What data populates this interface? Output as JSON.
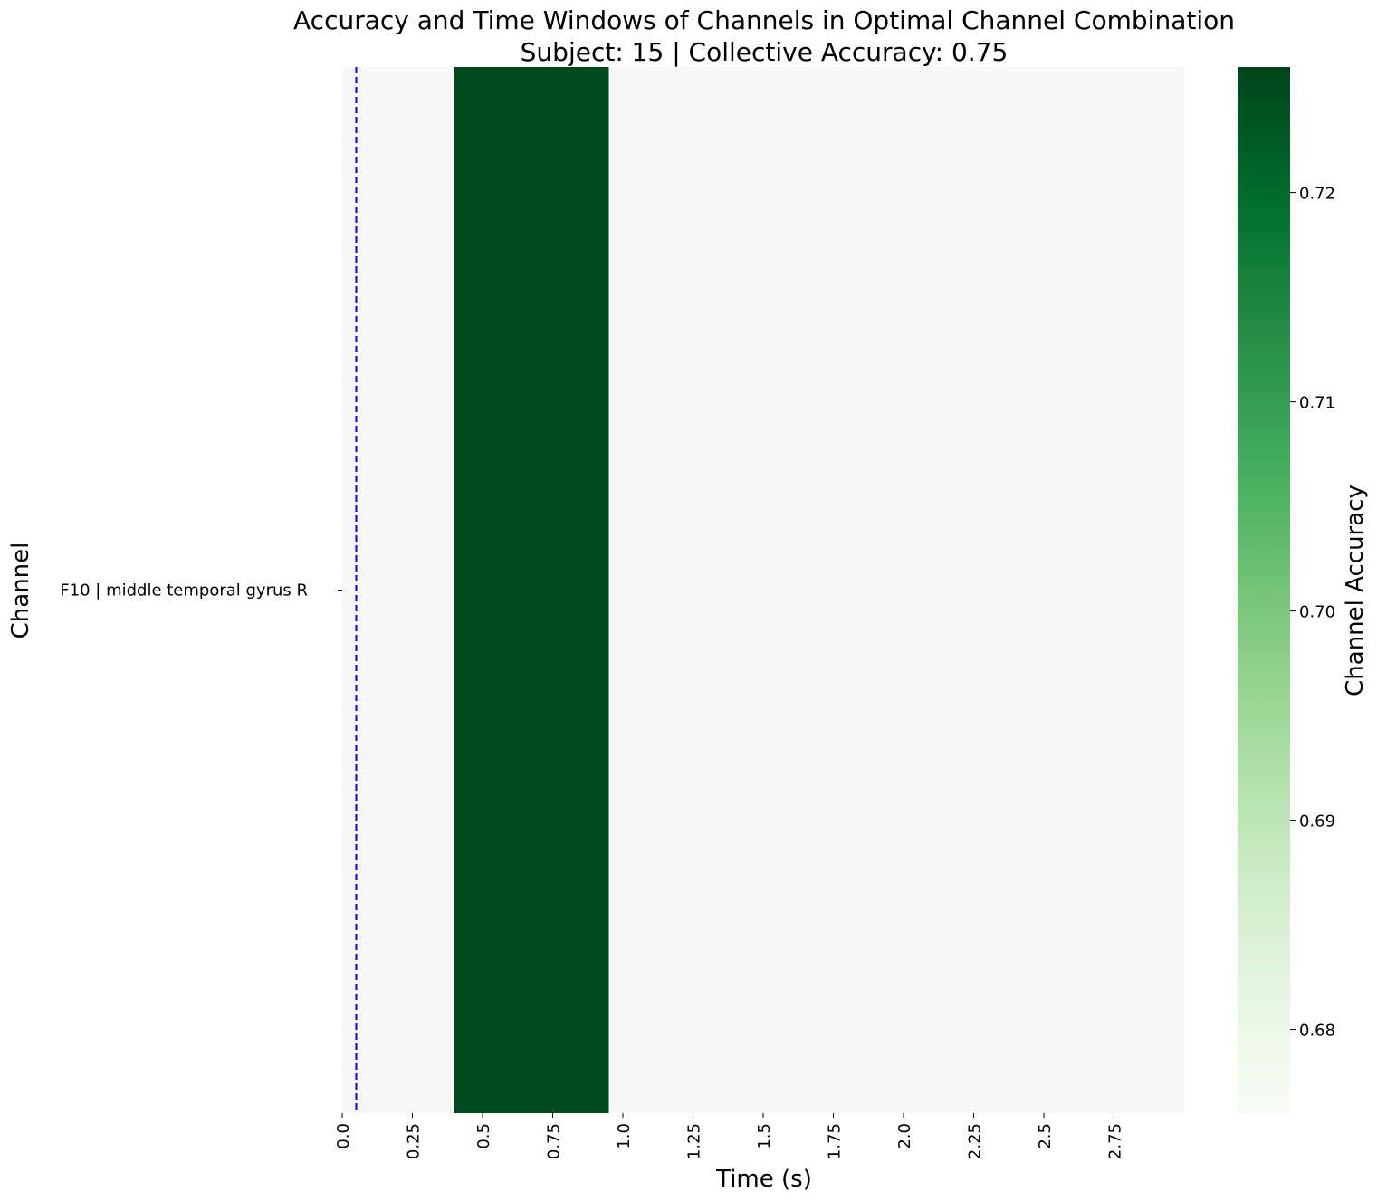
{
  "chart_data": {
    "type": "heatmap",
    "title": "Accuracy and Time Windows of Channels in Optimal Channel Combination",
    "subtitle": "Subject: 15 | Collective Accuracy: 0.75",
    "xlabel": "Time (s)",
    "ylabel": "Channel",
    "colorbar_label": "Channel Accuracy",
    "channels": [
      "F10 | middle temporal gyrus R"
    ],
    "x_range": [
      0.0,
      3.0
    ],
    "x_ticks": [
      0.0,
      0.25,
      0.5,
      0.75,
      1.0,
      1.25,
      1.5,
      1.75,
      2.0,
      2.25,
      2.5,
      2.75
    ],
    "x_tick_labels": [
      "0.0",
      "0.25",
      "0.5",
      "0.75",
      "1.0",
      "1.25",
      "1.5",
      "1.75",
      "2.0",
      "2.25",
      "2.5",
      "2.75"
    ],
    "windows": [
      {
        "channel": "F10 | middle temporal gyrus R",
        "start": 0.4,
        "end": 0.95,
        "accuracy": 0.725
      }
    ],
    "background_color": "#f7f7f7",
    "colormap": "Greens",
    "colorbar_range": [
      0.676,
      0.726
    ],
    "colorbar_ticks": [
      0.68,
      0.69,
      0.7,
      0.71,
      0.72
    ],
    "colorbar_tick_labels": [
      "0.68",
      "0.69",
      "0.70",
      "0.71",
      "0.72"
    ],
    "reference_line": {
      "x": 0.05,
      "color": "#0000ff",
      "style": "dashed"
    },
    "grid": false
  }
}
